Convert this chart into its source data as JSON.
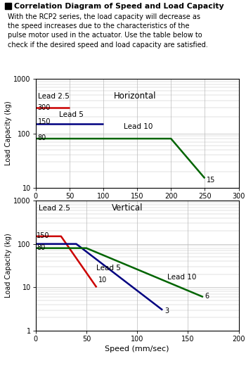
{
  "title_text": "Correlation Diagram of Speed and Load Capacity",
  "description": "With the RCP2 series, the load capacity will decrease as\nthe speed increases due to the characteristics of the\npulse motor used in the actuator. Use the table below to\ncheck if the desired speed and load capacity are satisfied.",
  "horiz": {
    "label": "Horizontal",
    "xlim": [
      0,
      300
    ],
    "ylim": [
      10,
      1000
    ],
    "lead2p5": {
      "x": [
        0,
        50
      ],
      "y": [
        300,
        300
      ],
      "color": "#cc0000",
      "label": "Lead 2.5",
      "start_val": "300"
    },
    "lead5": {
      "x": [
        0,
        100
      ],
      "y": [
        150,
        150
      ],
      "color": "#000080",
      "label": "Lead 5",
      "start_val": "150"
    },
    "lead10": {
      "x": [
        0,
        200,
        250
      ],
      "y": [
        80,
        80,
        15
      ],
      "color": "#006400",
      "label": "Lead 10",
      "start_val": "80",
      "end_val": "15"
    }
  },
  "vert": {
    "label": "Vertical",
    "xlim": [
      0,
      200
    ],
    "ylim": [
      1,
      1000
    ],
    "lead2p5": {
      "x": [
        0,
        25,
        60
      ],
      "y": [
        150,
        150,
        10
      ],
      "color": "#cc0000",
      "label": "Lead 2.5",
      "start_val": "150",
      "end_val": "10"
    },
    "lead5": {
      "x": [
        0,
        40,
        125
      ],
      "y": [
        100,
        100,
        3
      ],
      "color": "#000080",
      "label": "Lead 5",
      "end_val": "3"
    },
    "lead10": {
      "x": [
        0,
        50,
        165
      ],
      "y": [
        80,
        80,
        6
      ],
      "color": "#006400",
      "label": "Lead 10",
      "start_val": "80",
      "end_val": "6"
    }
  },
  "xlabel": "Speed (mm/sec)",
  "ylabel": "Load Capacity (kg)",
  "bg_color": "#ffffff",
  "grid_color": "#bbbbbb"
}
